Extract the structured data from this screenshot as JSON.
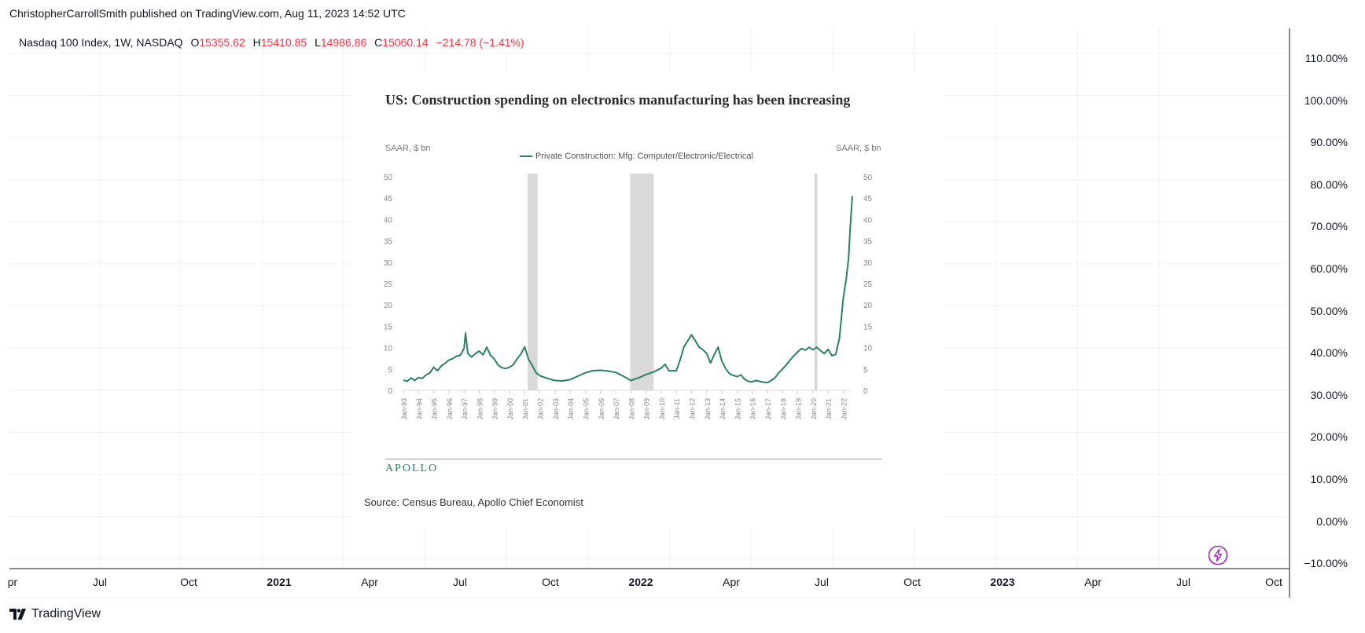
{
  "publisher": "ChristopherCarrollSmith published on TradingView.com, Aug 11, 2023 14:52 UTC",
  "legend": {
    "symbol": "Nasdaq 100 Index, 1W, NASDAQ",
    "o_label": "O",
    "o_value": "15355.62",
    "h_label": "H",
    "h_value": "15410.85",
    "l_label": "L",
    "l_value": "14986.86",
    "c_label": "C",
    "c_value": "15060.14",
    "change": "−214.78 (−1.41%)"
  },
  "price_axis": [
    "110.00%",
    "100.00%",
    "90.00%",
    "80.00%",
    "70.00%",
    "60.00%",
    "50.00%",
    "40.00%",
    "30.00%",
    "20.00%",
    "10.00%",
    "0.00%",
    "−10.00%"
  ],
  "time_axis": [
    {
      "t": "Jul",
      "bold": false
    },
    {
      "t": "Oct",
      "bold": false
    },
    {
      "t": "2021",
      "bold": true
    },
    {
      "t": "Apr",
      "bold": false
    },
    {
      "t": "Jul",
      "bold": false
    },
    {
      "t": "Oct",
      "bold": false
    },
    {
      "t": "2022",
      "bold": true
    },
    {
      "t": "Apr",
      "bold": false
    },
    {
      "t": "Jul",
      "bold": false
    },
    {
      "t": "Oct",
      "bold": false
    },
    {
      "t": "2023",
      "bold": true
    },
    {
      "t": "Apr",
      "bold": false
    },
    {
      "t": "Jul",
      "bold": false
    },
    {
      "t": "Oct",
      "bold": false
    }
  ],
  "brand": "TradingView",
  "colors": {
    "accent_red": "#f23645",
    "series_green": "#2a8060",
    "recession_gray": "#d9d9d9",
    "flash_purple": "#9c27b0"
  },
  "chart_data": {
    "type": "line",
    "title": "US: Construction spending on electronics manufacturing has been increasing",
    "ylabel": "SAAR, $ bn",
    "ylabel_right": "SAAR, $ bn",
    "ylim": [
      0,
      50
    ],
    "yticks": [
      0,
      5,
      10,
      15,
      20,
      25,
      30,
      35,
      40,
      45,
      50
    ],
    "xlim": [
      1993.0,
      2022.6
    ],
    "xticks": [
      "Jan-93",
      "Jan-94",
      "Jan-95",
      "Jan-96",
      "Jan-97",
      "Jan-98",
      "Jan-99",
      "Jan-00",
      "Jan-01",
      "Jan-02",
      "Jan-03",
      "Jan-04",
      "Jan-05",
      "Jan-06",
      "Jan-07",
      "Jan-08",
      "Jan-09",
      "Jan-10",
      "Jan-11",
      "Jan-12",
      "Jan-13",
      "Jan-14",
      "Jan-15",
      "Jan-16",
      "Jan-17",
      "Jan-18",
      "Jan-19",
      "Jan-20",
      "Jan-21",
      "Jan-22"
    ],
    "grid": false,
    "legend_position": "top-center",
    "recession_shading": [
      {
        "start": 2001.2,
        "end": 2001.85
      },
      {
        "start": 2007.95,
        "end": 2009.5
      },
      {
        "start": 2020.1,
        "end": 2020.3
      }
    ],
    "series": [
      {
        "name": "Private Construction: Mfg: Computer/Electronic/Electrical",
        "color": "#2a8060",
        "points": [
          [
            1993.0,
            2.4
          ],
          [
            1993.25,
            2.1
          ],
          [
            1993.5,
            2.9
          ],
          [
            1993.75,
            2.3
          ],
          [
            1994.0,
            3.0
          ],
          [
            1994.25,
            2.8
          ],
          [
            1994.5,
            3.6
          ],
          [
            1994.75,
            4.1
          ],
          [
            1995.0,
            5.4
          ],
          [
            1995.25,
            4.6
          ],
          [
            1995.5,
            5.7
          ],
          [
            1995.75,
            6.3
          ],
          [
            1996.0,
            7.1
          ],
          [
            1996.25,
            7.4
          ],
          [
            1996.5,
            8.0
          ],
          [
            1996.75,
            8.2
          ],
          [
            1997.0,
            9.8
          ],
          [
            1997.1,
            13.4
          ],
          [
            1997.25,
            8.6
          ],
          [
            1997.5,
            7.8
          ],
          [
            1997.75,
            8.6
          ],
          [
            1998.0,
            9.2
          ],
          [
            1998.25,
            8.3
          ],
          [
            1998.5,
            10.1
          ],
          [
            1998.75,
            8.2
          ],
          [
            1999.0,
            7.3
          ],
          [
            1999.25,
            5.9
          ],
          [
            1999.5,
            5.3
          ],
          [
            1999.75,
            5.1
          ],
          [
            2000.0,
            5.4
          ],
          [
            2000.25,
            6.0
          ],
          [
            2000.5,
            7.4
          ],
          [
            2000.75,
            8.5
          ],
          [
            2001.0,
            10.2
          ],
          [
            2001.25,
            7.3
          ],
          [
            2001.5,
            5.8
          ],
          [
            2001.75,
            4.1
          ],
          [
            2002.0,
            3.4
          ],
          [
            2002.5,
            2.8
          ],
          [
            2003.0,
            2.3
          ],
          [
            2003.5,
            2.2
          ],
          [
            2004.0,
            2.5
          ],
          [
            2004.5,
            3.3
          ],
          [
            2005.0,
            4.1
          ],
          [
            2005.5,
            4.6
          ],
          [
            2006.0,
            4.7
          ],
          [
            2006.5,
            4.5
          ],
          [
            2007.0,
            4.2
          ],
          [
            2007.5,
            3.3
          ],
          [
            2008.0,
            2.3
          ],
          [
            2008.5,
            2.9
          ],
          [
            2009.0,
            3.7
          ],
          [
            2009.5,
            4.3
          ],
          [
            2010.0,
            5.2
          ],
          [
            2010.25,
            6.1
          ],
          [
            2010.5,
            4.6
          ],
          [
            2011.0,
            4.6
          ],
          [
            2011.25,
            7.2
          ],
          [
            2011.5,
            10.2
          ],
          [
            2011.75,
            11.6
          ],
          [
            2012.0,
            13.0
          ],
          [
            2012.25,
            11.6
          ],
          [
            2012.5,
            10.1
          ],
          [
            2012.75,
            9.5
          ],
          [
            2013.0,
            8.6
          ],
          [
            2013.25,
            6.4
          ],
          [
            2013.5,
            8.4
          ],
          [
            2013.75,
            10.1
          ],
          [
            2014.0,
            6.8
          ],
          [
            2014.25,
            5.1
          ],
          [
            2014.5,
            3.9
          ],
          [
            2014.75,
            3.5
          ],
          [
            2015.0,
            3.2
          ],
          [
            2015.25,
            3.6
          ],
          [
            2015.5,
            2.6
          ],
          [
            2015.75,
            2.1
          ],
          [
            2016.0,
            2.0
          ],
          [
            2016.25,
            2.3
          ],
          [
            2016.5,
            2.1
          ],
          [
            2016.75,
            1.9
          ],
          [
            2017.0,
            1.8
          ],
          [
            2017.25,
            2.3
          ],
          [
            2017.5,
            2.9
          ],
          [
            2017.75,
            4.1
          ],
          [
            2018.0,
            5.0
          ],
          [
            2018.25,
            6.0
          ],
          [
            2018.5,
            7.1
          ],
          [
            2018.75,
            8.1
          ],
          [
            2019.0,
            9.0
          ],
          [
            2019.25,
            9.8
          ],
          [
            2019.5,
            9.4
          ],
          [
            2019.75,
            10.1
          ],
          [
            2020.0,
            9.5
          ],
          [
            2020.25,
            10.1
          ],
          [
            2020.5,
            9.3
          ],
          [
            2020.75,
            8.6
          ],
          [
            2021.0,
            9.6
          ],
          [
            2021.25,
            8.1
          ],
          [
            2021.5,
            8.4
          ],
          [
            2021.75,
            12.2
          ],
          [
            2022.0,
            21.5
          ],
          [
            2022.2,
            26.2
          ],
          [
            2022.35,
            30.8
          ],
          [
            2022.45,
            37.5
          ],
          [
            2022.6,
            45.5
          ]
        ]
      }
    ],
    "annotations": [
      "APOLLO",
      "Source: Census Bureau, Apollo Chief Economist"
    ]
  }
}
